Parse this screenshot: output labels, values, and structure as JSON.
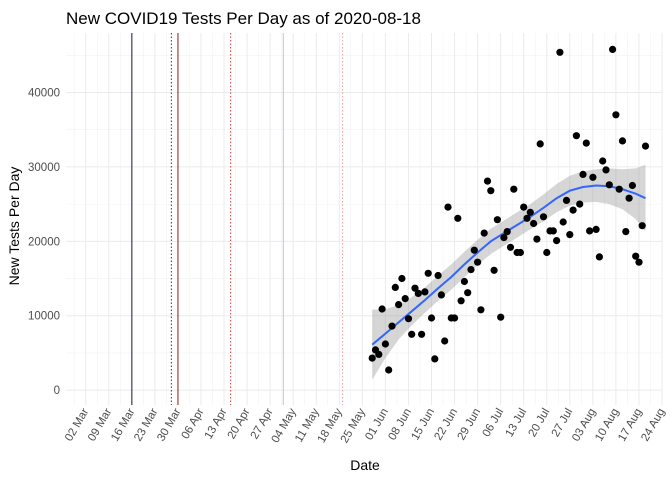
{
  "chart_data": {
    "type": "scatter",
    "title": "New COVID19 Tests Per Day as of 2020-08-18",
    "xlabel": "Date",
    "ylabel": "New Tests Per Day",
    "x_range": [
      "2020-02-25",
      "2020-08-24"
    ],
    "ylim": [
      -2000,
      48000
    ],
    "grid": true,
    "y_ticks": [
      0,
      10000,
      20000,
      30000,
      40000
    ],
    "x_ticks": [
      {
        "date": "2020-03-02",
        "label": "02 Mar"
      },
      {
        "date": "2020-03-09",
        "label": "09 Mar"
      },
      {
        "date": "2020-03-16",
        "label": "16 Mar"
      },
      {
        "date": "2020-03-23",
        "label": "23 Mar"
      },
      {
        "date": "2020-03-30",
        "label": "30 Mar"
      },
      {
        "date": "2020-04-06",
        "label": "06 Apr"
      },
      {
        "date": "2020-04-13",
        "label": "13 Apr"
      },
      {
        "date": "2020-04-20",
        "label": "20 Apr"
      },
      {
        "date": "2020-04-27",
        "label": "27 Apr"
      },
      {
        "date": "2020-05-04",
        "label": "04 May"
      },
      {
        "date": "2020-05-11",
        "label": "11 May"
      },
      {
        "date": "2020-05-18",
        "label": "18 May"
      },
      {
        "date": "2020-05-25",
        "label": "25 May"
      },
      {
        "date": "2020-06-01",
        "label": "01 Jun"
      },
      {
        "date": "2020-06-08",
        "label": "08 Jun"
      },
      {
        "date": "2020-06-15",
        "label": "15 Jun"
      },
      {
        "date": "2020-06-22",
        "label": "22 Jun"
      },
      {
        "date": "2020-06-29",
        "label": "29 Jun"
      },
      {
        "date": "2020-07-06",
        "label": "06 Jul"
      },
      {
        "date": "2020-07-13",
        "label": "13 Jul"
      },
      {
        "date": "2020-07-20",
        "label": "20 Jul"
      },
      {
        "date": "2020-07-27",
        "label": "27 Jul"
      },
      {
        "date": "2020-08-03",
        "label": "03 Aug"
      },
      {
        "date": "2020-08-10",
        "label": "10 Aug"
      },
      {
        "date": "2020-08-17",
        "label": "17 Aug"
      },
      {
        "date": "2020-08-24",
        "label": "24 Aug"
      }
    ],
    "vlines": [
      {
        "date": "2020-03-16",
        "color": "#1a1a3a",
        "dash": "solid"
      },
      {
        "date": "2020-03-28",
        "color": "#4b2a6b",
        "dash": "dotted"
      },
      {
        "date": "2020-03-30",
        "color": "#8b1a1a",
        "dash": "solid"
      },
      {
        "date": "2020-04-15",
        "color": "#d83a3a",
        "dash": "dotted"
      },
      {
        "date": "2020-05-01",
        "color": "#d8b8e0",
        "dash": "solid"
      },
      {
        "date": "2020-05-19",
        "color": "#f0a0a0",
        "dash": "dotted"
      }
    ],
    "series": [
      {
        "points": [
          [
            "2020-05-28",
            4300
          ],
          [
            "2020-05-29",
            5400
          ],
          [
            "2020-05-30",
            4800
          ],
          [
            "2020-05-31",
            10900
          ],
          [
            "2020-06-01",
            6200
          ],
          [
            "2020-06-02",
            2700
          ],
          [
            "2020-06-03",
            8600
          ],
          [
            "2020-06-04",
            13800
          ],
          [
            "2020-06-05",
            11500
          ],
          [
            "2020-06-06",
            15000
          ],
          [
            "2020-06-07",
            12300
          ],
          [
            "2020-06-08",
            9600
          ],
          [
            "2020-06-09",
            7500
          ],
          [
            "2020-06-10",
            13700
          ],
          [
            "2020-06-11",
            13000
          ],
          [
            "2020-06-12",
            7500
          ],
          [
            "2020-06-13",
            13200
          ],
          [
            "2020-06-14",
            15700
          ],
          [
            "2020-06-15",
            9700
          ],
          [
            "2020-06-16",
            4200
          ],
          [
            "2020-06-17",
            15400
          ],
          [
            "2020-06-18",
            12800
          ],
          [
            "2020-06-19",
            6600
          ],
          [
            "2020-06-20",
            24600
          ],
          [
            "2020-06-21",
            9700
          ],
          [
            "2020-06-22",
            9700
          ],
          [
            "2020-06-23",
            23100
          ],
          [
            "2020-06-24",
            12000
          ],
          [
            "2020-06-25",
            14600
          ],
          [
            "2020-06-26",
            13100
          ],
          [
            "2020-06-27",
            16200
          ],
          [
            "2020-06-28",
            18800
          ],
          [
            "2020-06-29",
            17200
          ],
          [
            "2020-06-30",
            10800
          ],
          [
            "2020-07-01",
            21100
          ],
          [
            "2020-07-02",
            28100
          ],
          [
            "2020-07-03",
            26800
          ],
          [
            "2020-07-04",
            16100
          ],
          [
            "2020-07-05",
            22900
          ],
          [
            "2020-07-06",
            9800
          ],
          [
            "2020-07-07",
            20500
          ],
          [
            "2020-07-08",
            21300
          ],
          [
            "2020-07-09",
            19200
          ],
          [
            "2020-07-10",
            27000
          ],
          [
            "2020-07-11",
            18500
          ],
          [
            "2020-07-12",
            18500
          ],
          [
            "2020-07-13",
            24600
          ],
          [
            "2020-07-14",
            23100
          ],
          [
            "2020-07-15",
            23900
          ],
          [
            "2020-07-16",
            22400
          ],
          [
            "2020-07-17",
            20300
          ],
          [
            "2020-07-18",
            33100
          ],
          [
            "2020-07-19",
            23300
          ],
          [
            "2020-07-20",
            18500
          ],
          [
            "2020-07-21",
            21400
          ],
          [
            "2020-07-22",
            21400
          ],
          [
            "2020-07-23",
            20100
          ],
          [
            "2020-07-24",
            45400
          ],
          [
            "2020-07-25",
            22600
          ],
          [
            "2020-07-26",
            25500
          ],
          [
            "2020-07-27",
            20900
          ],
          [
            "2020-07-28",
            24200
          ],
          [
            "2020-07-29",
            34200
          ],
          [
            "2020-07-30",
            25000
          ],
          [
            "2020-07-31",
            29000
          ],
          [
            "2020-08-01",
            33200
          ],
          [
            "2020-08-02",
            21400
          ],
          [
            "2020-08-03",
            28600
          ],
          [
            "2020-08-04",
            21600
          ],
          [
            "2020-08-05",
            17900
          ],
          [
            "2020-08-06",
            30800
          ],
          [
            "2020-08-07",
            29600
          ],
          [
            "2020-08-08",
            27600
          ],
          [
            "2020-08-09",
            45800
          ],
          [
            "2020-08-10",
            37000
          ],
          [
            "2020-08-11",
            27000
          ],
          [
            "2020-08-12",
            33500
          ],
          [
            "2020-08-13",
            21300
          ],
          [
            "2020-08-14",
            25800
          ],
          [
            "2020-08-15",
            27500
          ],
          [
            "2020-08-16",
            18000
          ],
          [
            "2020-08-17",
            17200
          ],
          [
            "2020-08-18",
            22100
          ],
          [
            "2020-08-19",
            32800
          ]
        ]
      }
    ],
    "smooth": {
      "method": "loess",
      "color": "#3366ff",
      "band_color": "#999999",
      "points": [
        [
          "2020-05-28",
          6100,
          1400,
          10800
        ],
        [
          "2020-06-01",
          7600,
          4300,
          10900
        ],
        [
          "2020-06-05",
          9100,
          6800,
          11400
        ],
        [
          "2020-06-09",
          10600,
          8700,
          12500
        ],
        [
          "2020-06-13",
          12100,
          10400,
          13800
        ],
        [
          "2020-06-17",
          13700,
          12000,
          15400
        ],
        [
          "2020-06-21",
          15200,
          13500,
          16900
        ],
        [
          "2020-06-25",
          16900,
          15200,
          18600
        ],
        [
          "2020-06-29",
          18500,
          16800,
          20200
        ],
        [
          "2020-07-03",
          20000,
          18300,
          21700
        ],
        [
          "2020-07-07",
          21100,
          19400,
          22800
        ],
        [
          "2020-07-11",
          22200,
          20500,
          23900
        ],
        [
          "2020-07-15",
          23300,
          21600,
          25000
        ],
        [
          "2020-07-19",
          24500,
          22700,
          26300
        ],
        [
          "2020-07-23",
          25800,
          23900,
          27700
        ],
        [
          "2020-07-27",
          26800,
          24800,
          28800
        ],
        [
          "2020-07-31",
          27300,
          25200,
          29400
        ],
        [
          "2020-08-04",
          27500,
          25300,
          29700
        ],
        [
          "2020-08-08",
          27400,
          25000,
          29800
        ],
        [
          "2020-08-12",
          27000,
          24300,
          29700
        ],
        [
          "2020-08-16",
          26400,
          23000,
          29800
        ],
        [
          "2020-08-19",
          25800,
          21300,
          30300
        ]
      ]
    }
  }
}
